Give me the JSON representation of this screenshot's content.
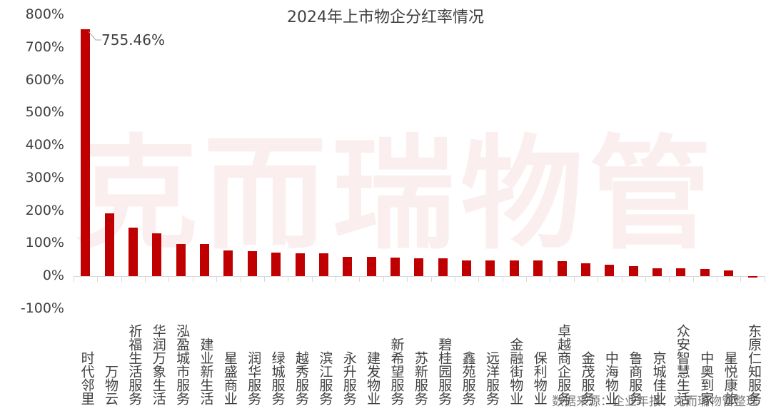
{
  "chart_data": {
    "type": "bar",
    "title": "2024年上市物企分红率情况",
    "xlabel": "",
    "ylabel": "",
    "ylim": [
      -100,
      800
    ],
    "yticks": [
      "800%",
      "700%",
      "600%",
      "500%",
      "400%",
      "300%",
      "200%",
      "100%",
      "0%",
      "-100%"
    ],
    "grid": false,
    "legend": null,
    "color": "#c00000",
    "categories": [
      "时代邻里",
      "万物云",
      "祈福生活服务",
      "华润万象生活",
      "泓盈城市服务",
      "建业新生活",
      "星盛商业",
      "润华服务",
      "绿城服务",
      "越秀服务",
      "滨江服务",
      "永升服务",
      "建发物业",
      "新希望服务",
      "苏新服务",
      "碧桂园服务",
      "鑫苑服务",
      "远洋服务",
      "金融街物业",
      "保利物业",
      "卓越商企服务",
      "金茂服务",
      "中海物业",
      "鲁商服务",
      "京城佳业",
      "众安智慧生活",
      "中奥到家",
      "星悦康旅",
      "东原仁知服务"
    ],
    "values": [
      755.46,
      192,
      149,
      131,
      99,
      98,
      79,
      77,
      73,
      71,
      69,
      60,
      59,
      57,
      55,
      54,
      49,
      49,
      49,
      48,
      46,
      40,
      35,
      30,
      24,
      24,
      21,
      18,
      -4
    ],
    "annotations": [
      {
        "category": "时代邻里",
        "text": "755.46%"
      }
    ]
  },
  "watermark": "克而瑞物管",
  "source": "数据来源：企业年报、克而瑞物管整理"
}
